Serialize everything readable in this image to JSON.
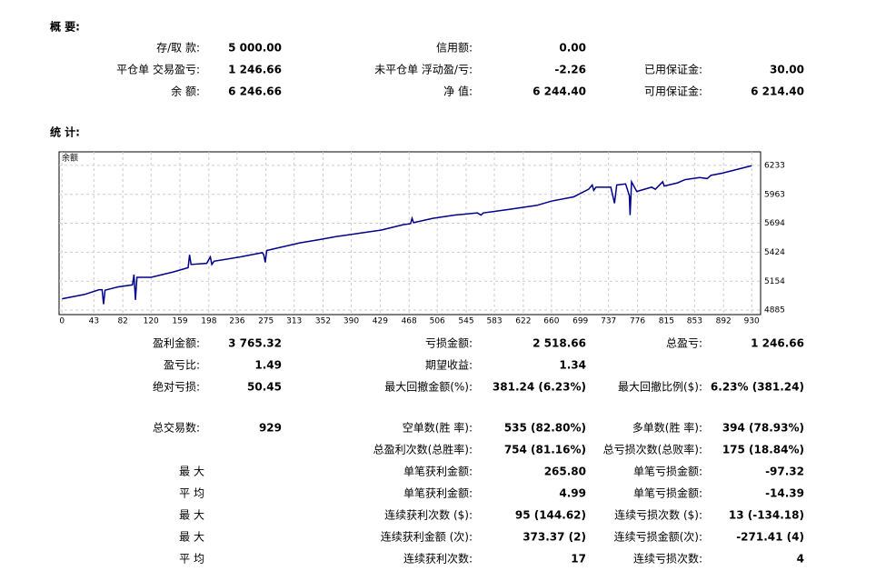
{
  "summary": {
    "title": "概 要:",
    "rows": [
      [
        {
          "label": "存/取 款:",
          "value": "5 000.00"
        },
        {
          "label": "信用额:",
          "value": "0.00"
        },
        null
      ],
      [
        {
          "label": "平仓单 交易盈亏:",
          "value": "1 246.66"
        },
        {
          "label": "未平仓单 浮动盈/亏:",
          "value": "-2.26"
        },
        {
          "label": "已用保证金:",
          "value": "30.00"
        }
      ],
      [
        {
          "label": "余 额:",
          "value": "6 246.66"
        },
        {
          "label": "净 值:",
          "value": "6 244.40"
        },
        {
          "label": "可用保证金:",
          "value": "6 214.40"
        }
      ]
    ]
  },
  "stats": {
    "title": "统 计:",
    "rows": [
      [
        {
          "label": "盈利金额:",
          "value": "3 765.32"
        },
        {
          "label": "亏损金额:",
          "value": "2 518.66"
        },
        {
          "label": "总盈亏:",
          "value": "1 246.66"
        }
      ],
      [
        {
          "label": "盈亏比:",
          "value": "1.49"
        },
        {
          "label": "期望收益:",
          "value": "1.34"
        },
        null
      ],
      [
        {
          "label": "绝对亏损:",
          "value": "50.45"
        },
        {
          "label": "最大回撤金额(%):",
          "value": "381.24 (6.23%)"
        },
        {
          "label": "最大回撤比例($):",
          "value": "6.23% (381.24)"
        }
      ],
      [
        {
          "label": "总交易数:",
          "value": "929"
        },
        {
          "label": "空单数(胜 率):",
          "value": "535 (82.80%)"
        },
        {
          "label": "多单数(胜 率):",
          "value": "394 (78.93%)"
        }
      ],
      [
        null,
        {
          "label": "总盈利次数(总胜率):",
          "value": "754 (81.16%)"
        },
        {
          "label": "总亏损次数(总败率):",
          "value": "175 (18.84%)"
        }
      ],
      [
        {
          "label": "最 大"
        },
        {
          "label": "单笔获利金额:",
          "value": "265.80"
        },
        {
          "label": "单笔亏损金额:",
          "value": "-97.32"
        }
      ],
      [
        {
          "label": "平 均"
        },
        {
          "label": "单笔获利金额:",
          "value": "4.99"
        },
        {
          "label": "单笔亏损金额:",
          "value": "-14.39"
        }
      ],
      [
        {
          "label": "最 大"
        },
        {
          "label": "连续获利次数 ($):",
          "value": "95 (144.62)"
        },
        {
          "label": "连续亏损次数 ($):",
          "value": "13 (-134.18)"
        }
      ],
      [
        {
          "label": "最 大"
        },
        {
          "label": "连续获利金额 (次):",
          "value": "373.37 (2)"
        },
        {
          "label": "连续亏损金额(次):",
          "value": "-271.41 (4)"
        }
      ],
      [
        {
          "label": "平 均"
        },
        {
          "label": "连续获利次数:",
          "value": "17"
        },
        {
          "label": "连续亏损次数:",
          "value": "4"
        }
      ]
    ]
  },
  "chart_data": {
    "type": "line",
    "grid": true,
    "x": [
      0,
      30,
      50,
      54,
      56,
      58,
      75,
      95,
      97,
      99,
      101,
      120,
      150,
      170,
      172,
      174,
      195,
      200,
      202,
      205,
      240,
      270,
      272,
      274,
      276,
      320,
      350,
      370,
      400,
      430,
      460,
      470,
      472,
      474,
      500,
      530,
      560,
      565,
      568,
      600,
      640,
      660,
      690,
      710,
      715,
      717,
      720,
      740,
      745,
      748,
      760,
      765,
      766,
      768,
      775,
      795,
      800,
      810,
      812,
      830,
      840,
      860,
      870,
      875,
      890,
      930
    ],
    "series": [
      {
        "name": "余额",
        "color": "#00008b",
        "values": [
          4990,
          5030,
          5075,
          5075,
          4940,
          5070,
          5100,
          5120,
          5215,
          4980,
          5190,
          5190,
          5240,
          5280,
          5400,
          5310,
          5320,
          5380,
          5310,
          5340,
          5380,
          5420,
          5400,
          5330,
          5440,
          5510,
          5545,
          5570,
          5600,
          5630,
          5680,
          5690,
          5740,
          5700,
          5740,
          5770,
          5790,
          5770,
          5790,
          5820,
          5860,
          5900,
          5940,
          6010,
          6050,
          6000,
          6030,
          6030,
          5880,
          6050,
          6060,
          5950,
          5770,
          6080,
          5990,
          6030,
          6010,
          6080,
          6040,
          6070,
          6100,
          6120,
          6110,
          6140,
          6160,
          6230
        ]
      }
    ],
    "xlim": [
      -4,
      942
    ],
    "ylim": [
      4843,
      6359
    ],
    "xticks": [
      0,
      43,
      82,
      120,
      159,
      198,
      236,
      275,
      313,
      352,
      390,
      429,
      468,
      506,
      545,
      583,
      622,
      660,
      699,
      737,
      776,
      815,
      853,
      892,
      930
    ],
    "yticks": [
      4885,
      5154,
      5424,
      5694,
      5963,
      6233
    ]
  }
}
